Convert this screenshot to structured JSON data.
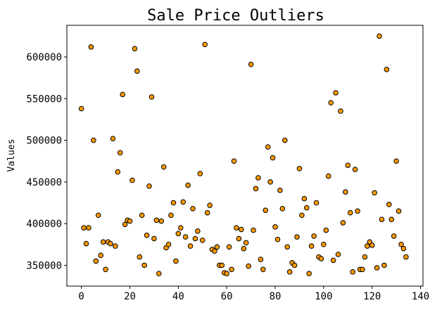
{
  "chart_data": {
    "type": "scatter",
    "title": "Sale Price Outliers",
    "xlabel": "",
    "ylabel": "Values",
    "xlim": [
      -6,
      141
    ],
    "ylim": [
      325000,
      638000
    ],
    "xticks": [
      0,
      20,
      40,
      60,
      80,
      100,
      120,
      140
    ],
    "yticks": [
      350000,
      400000,
      450000,
      500000,
      550000,
      600000
    ],
    "xtick_labels": [
      "0",
      "20",
      "40",
      "60",
      "80",
      "100",
      "120",
      "140"
    ],
    "ytick_labels": [
      "350000",
      "400000",
      "450000",
      "500000",
      "550000",
      "600000"
    ],
    "grid": false,
    "marker_color": "#ff9900",
    "marker_edge_color": "#000000",
    "points": [
      [
        0,
        538000
      ],
      [
        1,
        395000
      ],
      [
        2,
        376000
      ],
      [
        3,
        395000
      ],
      [
        4,
        612000
      ],
      [
        5,
        500000
      ],
      [
        6,
        355000
      ],
      [
        7,
        410000
      ],
      [
        8,
        362000
      ],
      [
        9,
        378000
      ],
      [
        10,
        345000
      ],
      [
        11,
        378000
      ],
      [
        12,
        376000
      ],
      [
        13,
        502000
      ],
      [
        14,
        373000
      ],
      [
        15,
        462000
      ],
      [
        16,
        485000
      ],
      [
        17,
        555000
      ],
      [
        18,
        399000
      ],
      [
        19,
        404000
      ],
      [
        20,
        403000
      ],
      [
        21,
        452000
      ],
      [
        22,
        610000
      ],
      [
        23,
        583000
      ],
      [
        24,
        360000
      ],
      [
        25,
        410000
      ],
      [
        26,
        350000
      ],
      [
        27,
        386000
      ],
      [
        28,
        445000
      ],
      [
        29,
        552000
      ],
      [
        30,
        382000
      ],
      [
        31,
        404000
      ],
      [
        32,
        340000
      ],
      [
        33,
        403000
      ],
      [
        34,
        468000
      ],
      [
        35,
        371000
      ],
      [
        36,
        375000
      ],
      [
        37,
        410000
      ],
      [
        38,
        425000
      ],
      [
        39,
        355000
      ],
      [
        40,
        388000
      ],
      [
        41,
        395000
      ],
      [
        42,
        426000
      ],
      [
        43,
        384000
      ],
      [
        44,
        446000
      ],
      [
        45,
        373000
      ],
      [
        46,
        418000
      ],
      [
        47,
        382000
      ],
      [
        48,
        391000
      ],
      [
        49,
        460000
      ],
      [
        50,
        380000
      ],
      [
        51,
        615000
      ],
      [
        52,
        413000
      ],
      [
        53,
        422000
      ],
      [
        54,
        369000
      ],
      [
        55,
        367000
      ],
      [
        56,
        372000
      ],
      [
        57,
        350000
      ],
      [
        58,
        350000
      ],
      [
        59,
        341000
      ],
      [
        60,
        340000
      ],
      [
        61,
        372000
      ],
      [
        62,
        345000
      ],
      [
        63,
        475000
      ],
      [
        64,
        395000
      ],
      [
        65,
        382000
      ],
      [
        66,
        393000
      ],
      [
        67,
        370000
      ],
      [
        68,
        377000
      ],
      [
        69,
        349000
      ],
      [
        70,
        591000
      ],
      [
        71,
        392000
      ],
      [
        72,
        442000
      ],
      [
        73,
        455000
      ],
      [
        74,
        357000
      ],
      [
        75,
        345000
      ],
      [
        76,
        416000
      ],
      [
        77,
        492000
      ],
      [
        78,
        450000
      ],
      [
        79,
        479000
      ],
      [
        80,
        396000
      ],
      [
        81,
        381000
      ],
      [
        82,
        440000
      ],
      [
        83,
        418000
      ],
      [
        84,
        500000
      ],
      [
        85,
        372000
      ],
      [
        86,
        342000
      ],
      [
        87,
        353000
      ],
      [
        88,
        350000
      ],
      [
        89,
        384000
      ],
      [
        90,
        466000
      ],
      [
        91,
        410000
      ],
      [
        92,
        430000
      ],
      [
        93,
        419000
      ],
      [
        94,
        340000
      ],
      [
        95,
        373000
      ],
      [
        96,
        385000
      ],
      [
        97,
        425000
      ],
      [
        98,
        360000
      ],
      [
        99,
        358000
      ],
      [
        100,
        375000
      ],
      [
        101,
        392000
      ],
      [
        102,
        457000
      ],
      [
        103,
        545000
      ],
      [
        104,
        356000
      ],
      [
        105,
        557000
      ],
      [
        106,
        363000
      ],
      [
        107,
        535000
      ],
      [
        108,
        401000
      ],
      [
        109,
        438000
      ],
      [
        110,
        470000
      ],
      [
        111,
        413000
      ],
      [
        112,
        342000
      ],
      [
        113,
        465000
      ],
      [
        114,
        415000
      ],
      [
        115,
        345000
      ],
      [
        116,
        345000
      ],
      [
        117,
        360000
      ],
      [
        118,
        373000
      ],
      [
        119,
        378000
      ],
      [
        120,
        374000
      ],
      [
        121,
        437000
      ],
      [
        122,
        347000
      ],
      [
        123,
        625000
      ],
      [
        124,
        405000
      ],
      [
        125,
        350000
      ],
      [
        126,
        585000
      ],
      [
        127,
        423000
      ],
      [
        128,
        405000
      ],
      [
        129,
        385000
      ],
      [
        130,
        475000
      ],
      [
        131,
        415000
      ],
      [
        132,
        375000
      ],
      [
        133,
        370000
      ],
      [
        134,
        360000
      ]
    ]
  }
}
